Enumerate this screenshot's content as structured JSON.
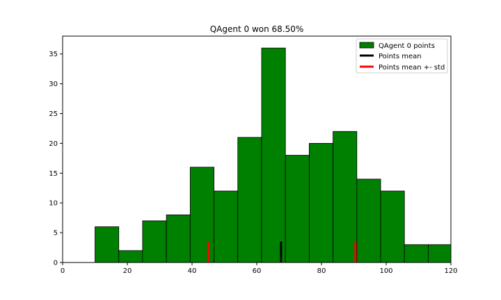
{
  "chart_data": {
    "type": "bar",
    "title": "QAgent 0 won 68.50%",
    "xlabel": "",
    "ylabel": "",
    "xlim": [
      0,
      120
    ],
    "ylim": [
      0,
      38
    ],
    "x_ticks": [
      0,
      20,
      40,
      60,
      80,
      100,
      120
    ],
    "y_ticks": [
      0,
      5,
      10,
      15,
      20,
      25,
      30,
      35
    ],
    "bin_edges": [
      10.0,
      17.36,
      24.71,
      32.07,
      39.43,
      46.79,
      54.14,
      61.5,
      68.86,
      76.21,
      83.57,
      90.93,
      98.29,
      105.64,
      113.0,
      120.0
    ],
    "series": [
      {
        "name": "QAgent 0 points",
        "color": "#008000",
        "values": [
          6,
          2,
          7,
          8,
          16,
          12,
          21,
          36,
          18,
          20,
          22,
          14,
          12,
          3,
          3
        ]
      }
    ],
    "mean_line": {
      "name": "Points mean",
      "x": 67.5,
      "height": 3.5,
      "color": "#000000"
    },
    "std_lines": {
      "name": "Points mean +- std",
      "x": [
        45.0,
        90.5
      ],
      "height": 3.5,
      "color": "#ff0000"
    },
    "legend_position": "upper-right",
    "grid": false
  }
}
